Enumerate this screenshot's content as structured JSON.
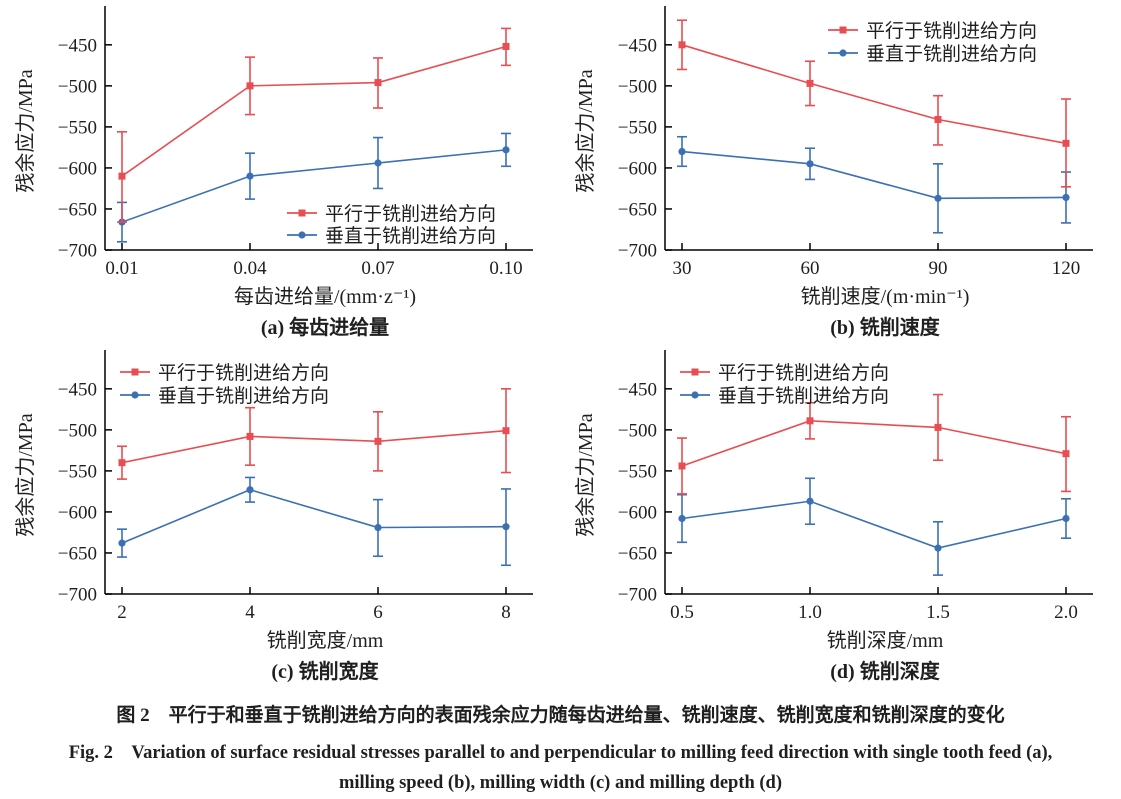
{
  "figure": {
    "caption_zh": "图 2　平行于和垂直于铣削进给方向的表面残余应力随每齿进给量、铣削速度、铣削宽度和铣削深度的变化",
    "caption_en_1": "Fig. 2　Variation of surface residual stresses parallel to and perpendicular to milling feed direction with single tooth feed (a),",
    "caption_en_2": "milling speed (b), milling width (c) and milling depth (d)"
  },
  "colors": {
    "parallel": "#e84d52",
    "perpendicular": "#3b70b5",
    "axis": "#000000",
    "legend_text": "#262626"
  },
  "chart_data": [
    {
      "id": "a",
      "type": "line",
      "title": "(a) 每齿进给量",
      "xlabel": "每齿进给量/(mm·z⁻¹)",
      "ylabel": "残余应力/MPa",
      "x_tick_labels": [
        "0.01",
        "0.04",
        "0.07",
        "0.10"
      ],
      "y_ticks": [
        -450,
        -500,
        -550,
        -600,
        -650,
        -700
      ],
      "ylim": [
        -700,
        -410
      ],
      "grid": false,
      "legend_pos": "bottom-right",
      "series": [
        {
          "name": "平行于铣削进给方向",
          "color_key": "parallel",
          "marker": "square",
          "values": [
            -610,
            -500,
            -496,
            -452
          ],
          "err_up": [
            54,
            35,
            30,
            22
          ],
          "err_down": [
            56,
            35,
            31,
            23
          ]
        },
        {
          "name": "垂直于铣削进给方向",
          "color_key": "perpendicular",
          "marker": "circle",
          "values": [
            -666,
            -610,
            -594,
            -578
          ],
          "err_up": [
            24,
            28,
            31,
            20
          ],
          "err_down": [
            24,
            28,
            31,
            20
          ]
        }
      ]
    },
    {
      "id": "b",
      "type": "line",
      "title": "(b) 铣削速度",
      "xlabel": "铣削速度/(m·min⁻¹)",
      "ylabel": "残余应力/MPa",
      "x_tick_labels": [
        "30",
        "60",
        "90",
        "120"
      ],
      "y_ticks": [
        -450,
        -500,
        -550,
        -600,
        -650,
        -700
      ],
      "ylim": [
        -700,
        -410
      ],
      "grid": false,
      "legend_pos": "top-right",
      "series": [
        {
          "name": "平行于铣削进给方向",
          "color_key": "parallel",
          "marker": "square",
          "values": [
            -450,
            -497,
            -541,
            -570
          ],
          "err_up": [
            30,
            27,
            29,
            54
          ],
          "err_down": [
            30,
            27,
            31,
            53
          ]
        },
        {
          "name": "垂直于铣削进给方向",
          "color_key": "perpendicular",
          "marker": "circle",
          "values": [
            -580,
            -595,
            -637,
            -636
          ],
          "err_up": [
            18,
            19,
            42,
            31
          ],
          "err_down": [
            18,
            19,
            42,
            31
          ]
        }
      ]
    },
    {
      "id": "c",
      "type": "line",
      "title": "(c) 铣削宽度",
      "xlabel": "铣削宽度/mm",
      "ylabel": "残余应力/MPa",
      "x_tick_labels": [
        "2",
        "4",
        "6",
        "8"
      ],
      "y_ticks": [
        -450,
        -500,
        -550,
        -600,
        -650,
        -700
      ],
      "ylim": [
        -700,
        -410
      ],
      "grid": false,
      "legend_pos": "top-left",
      "series": [
        {
          "name": "平行于铣削进给方向",
          "color_key": "parallel",
          "marker": "square",
          "values": [
            -540,
            -508,
            -514,
            -501
          ],
          "err_up": [
            20,
            35,
            36,
            51
          ],
          "err_down": [
            20,
            35,
            36,
            51
          ]
        },
        {
          "name": "垂直于铣削进给方向",
          "color_key": "perpendicular",
          "marker": "circle",
          "values": [
            -638,
            -573,
            -619,
            -618
          ],
          "err_up": [
            17,
            15,
            34,
            46
          ],
          "err_down": [
            17,
            15,
            35,
            47
          ]
        }
      ]
    },
    {
      "id": "d",
      "type": "line",
      "title": "(d) 铣削深度",
      "xlabel": "铣削深度/mm",
      "ylabel": "残余应力/MPa",
      "x_tick_labels": [
        "0.5",
        "1.0",
        "1.5",
        "2.0"
      ],
      "y_ticks": [
        -450,
        -500,
        -550,
        -600,
        -650,
        -700
      ],
      "ylim": [
        -700,
        -410
      ],
      "grid": false,
      "legend_pos": "top-left",
      "series": [
        {
          "name": "平行于铣削进给方向",
          "color_key": "parallel",
          "marker": "square",
          "values": [
            -544,
            -489,
            -497,
            -529
          ],
          "err_up": [
            34,
            22,
            40,
            45
          ],
          "err_down": [
            34,
            22,
            40,
            46
          ]
        },
        {
          "name": "垂直于铣削进给方向",
          "color_key": "perpendicular",
          "marker": "circle",
          "values": [
            -608,
            -587,
            -644,
            -608
          ],
          "err_up": [
            29,
            28,
            32,
            24
          ],
          "err_down": [
            29,
            28,
            33,
            24
          ]
        }
      ]
    }
  ]
}
